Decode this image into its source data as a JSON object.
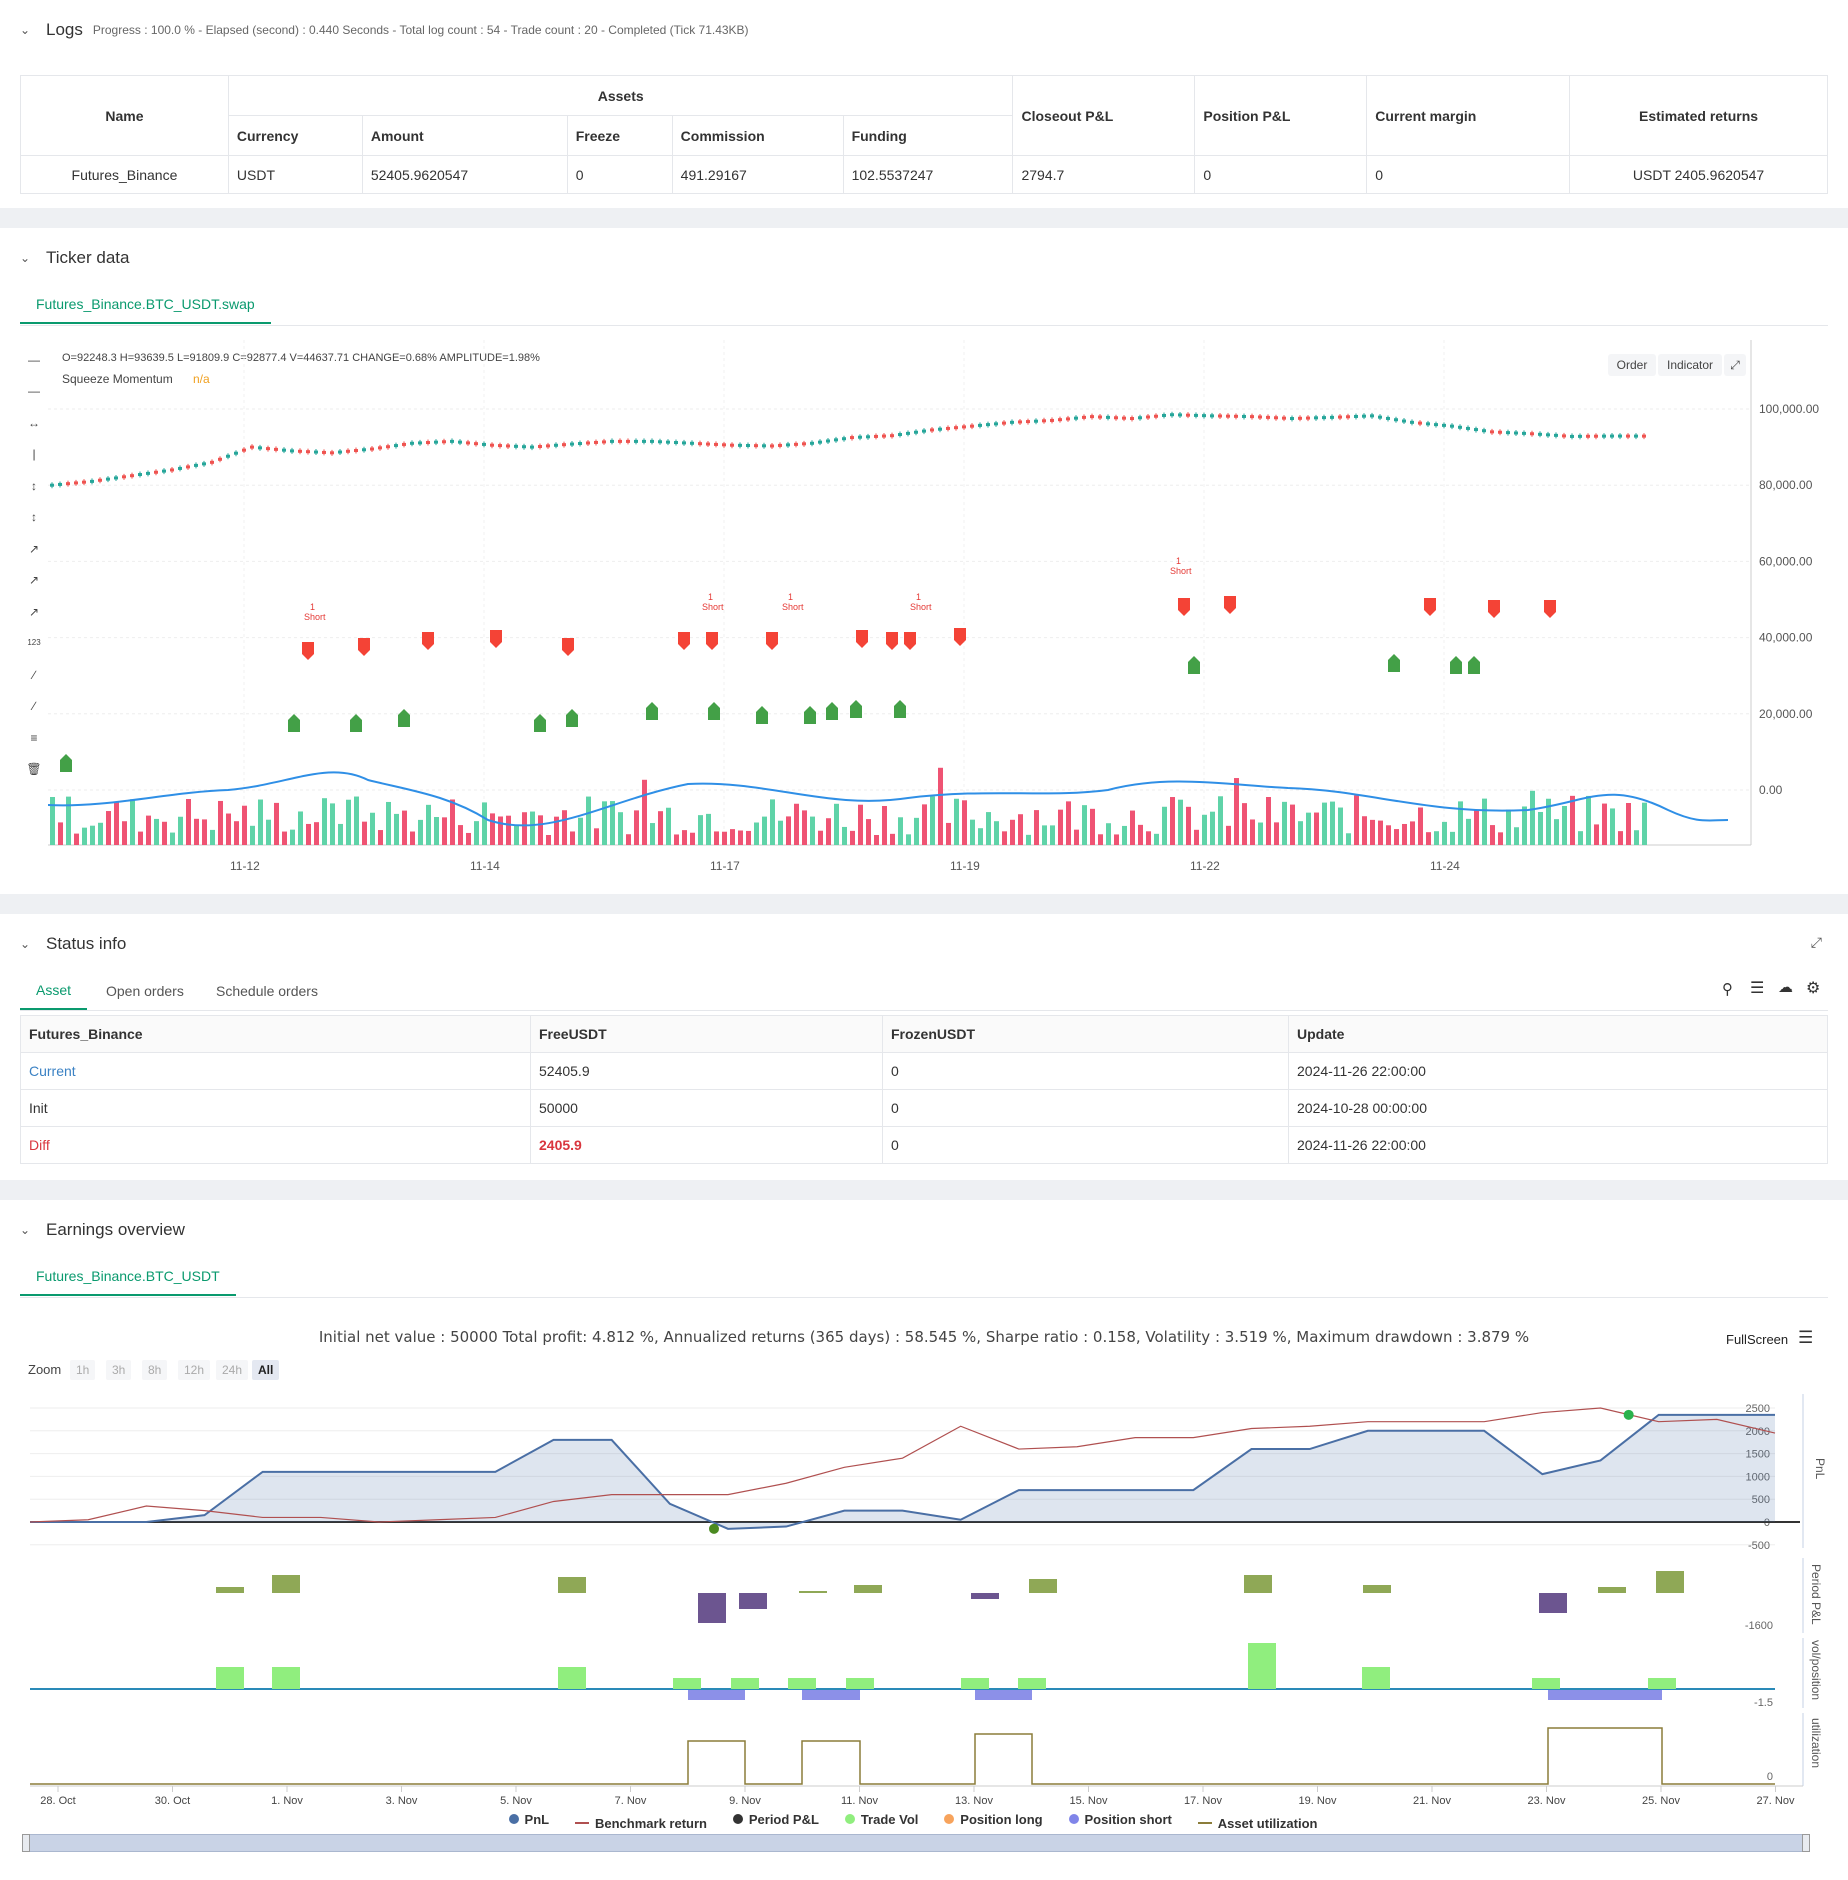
{
  "logs": {
    "title": "Logs",
    "status": "Progress : 100.0 % - Elapsed (second) : 0.440  Seconds - Total log count : 54 - Trade count : 20 - Completed (Tick 71.43KB)",
    "table": {
      "h_name": "Name",
      "h_assets": "Assets",
      "h_currency": "Currency",
      "h_amount": "Amount",
      "h_freeze": "Freeze",
      "h_commission": "Commission",
      "h_funding": "Funding",
      "h_closeout": "Closeout P&L",
      "h_position": "Position P&L",
      "h_margin": "Current margin",
      "h_est": "Estimated returns",
      "row": {
        "name": "Futures_Binance",
        "currency": "USDT",
        "amount": "52405.9620547",
        "freeze": "0",
        "commission": "491.29167",
        "funding": "102.5537247",
        "closeout": "2794.7",
        "position": "0",
        "margin": "0",
        "est": "USDT 2405.9620547"
      }
    }
  },
  "ticker": {
    "title": "Ticker data",
    "tab": "Futures_Binance.BTC_USDT.swap",
    "ohlc": "O=92248.3  H=93639.5  L=91809.9  C=92877.4  V=44637.71  CHANGE=0.68%  AMPLITUDE=1.98%",
    "indicator_name": "Squeeze Momentum",
    "indicator_value": "n/a",
    "order_btn": "Order",
    "indicator_btn": "Indicator",
    "yticks": [
      "100,000.00",
      "80,000.00",
      "60,000.00",
      "40,000.00",
      "20,000.00",
      "0.00"
    ],
    "xticks": [
      "11-12",
      "11-14",
      "11-17",
      "11-19",
      "11-22",
      "11-24"
    ],
    "marker_short": "Short",
    "marker_count": "1"
  },
  "status": {
    "title": "Status info",
    "tabs": [
      "Asset",
      "Open orders",
      "Schedule orders"
    ],
    "headers": [
      "Futures_Binance",
      "FreeUSDT",
      "FrozenUSDT",
      "Update"
    ],
    "rows": [
      {
        "label": "Current",
        "free": "52405.9",
        "frozen": "0",
        "update": "2024-11-26 22:00:00"
      },
      {
        "label": "Init",
        "free": "50000",
        "frozen": "0",
        "update": "2024-10-28 00:00:00"
      },
      {
        "label": "Diff",
        "free": "2405.9",
        "frozen": "0",
        "update": "2024-11-26 22:00:00"
      }
    ]
  },
  "earnings": {
    "title": "Earnings overview",
    "tab": "Futures_Binance.BTC_USDT",
    "summary": "Initial net value : 50000  Total profit: 4.812 %, Annualized returns (365 days) : 58.545 %, Sharpe ratio : 0.158, Volatility : 3.519 %, Maximum drawdown : 3.879 %",
    "fullscreen": "FullScreen",
    "zoom_label": "Zoom",
    "zoom_options": [
      "1h",
      "3h",
      "8h",
      "12h",
      "24h",
      "All"
    ],
    "pnl_yticks": [
      "2500",
      "2000",
      "1500",
      "1000",
      "500",
      "0",
      "-500"
    ],
    "pnl_axis": "PnL",
    "period_axis": "Period P&L",
    "period_tick": "-1600",
    "vol_axis": "vol/position",
    "vol_tick": "-1.5",
    "util_axis": "utilization",
    "util_tick": "0",
    "xticks": [
      "28. Oct",
      "30. Oct",
      "1. Nov",
      "3. Nov",
      "5. Nov",
      "7. Nov",
      "9. Nov",
      "11. Nov",
      "13. Nov",
      "15. Nov",
      "17. Nov",
      "19. Nov",
      "21. Nov",
      "23. Nov",
      "25. Nov",
      "27. Nov"
    ],
    "legend": [
      "PnL",
      "Benchmark return",
      "Period P&L",
      "Trade Vol",
      "Position long",
      "Position short",
      "Asset utilization"
    ],
    "colors": {
      "pnl": "#4a6fa5",
      "benchmark": "#b05050",
      "period": "#333333",
      "trade_vol": "#90ee7e",
      "long": "#f7a35c",
      "short": "#8085e9",
      "util": "#8b7d3a"
    }
  },
  "chart_data": {
    "type": "line",
    "series": [
      {
        "name": "PnL",
        "values": [
          0,
          0,
          0,
          150,
          1100,
          1100,
          1100,
          1100,
          1100,
          1800,
          1800,
          400,
          -150,
          -100,
          250,
          250,
          50,
          700,
          700,
          700,
          700,
          1600,
          1600,
          2000,
          2000,
          2000,
          1050,
          1350,
          2350,
          2350,
          2350
        ]
      },
      {
        "name": "Benchmark return",
        "values": [
          0,
          50,
          350,
          250,
          100,
          100,
          0,
          50,
          100,
          450,
          600,
          600,
          600,
          850,
          1200,
          1400,
          2100,
          1600,
          1650,
          1850,
          1850,
          2050,
          2100,
          2200,
          2200,
          2200,
          2400,
          2500,
          2200,
          2250,
          1950
        ]
      }
    ],
    "ylim": [
      -500,
      2500
    ]
  }
}
